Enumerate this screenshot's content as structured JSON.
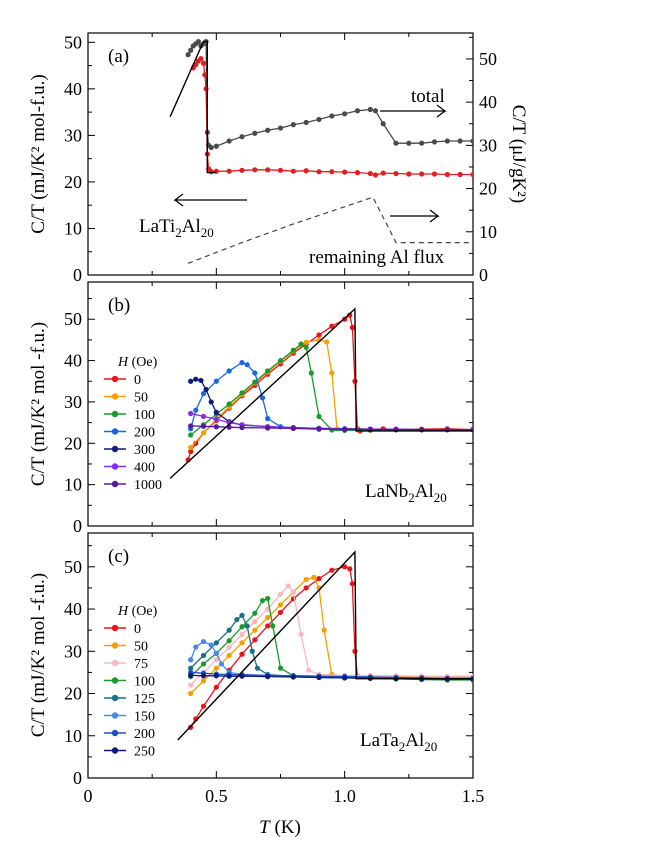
{
  "figure": {
    "xlabel_var": "T",
    "xlabel_unit": " (K)"
  },
  "chart_data": [
    {
      "id": "a",
      "type": "line",
      "panel_label": "(a)",
      "ylabel_left": "C/T (mJ/K² mol-f.u.)",
      "ylabel_right": "C/T (μJ/gK²)",
      "xlim": [
        0,
        1.5
      ],
      "ylim": [
        0,
        52
      ],
      "ylim_right": [
        0,
        56
      ],
      "yticks": [
        0,
        10,
        20,
        30,
        40,
        50
      ],
      "yticks_right": [
        0,
        10,
        20,
        30,
        40,
        50
      ],
      "annotations": {
        "sample": "LaTi",
        "sample_sub1": "2",
        "sample_mid": "Al",
        "sample_sub2": "20",
        "total": "total",
        "flux": "remaining Al flux"
      },
      "series": [
        {
          "color": "#4a4a4a",
          "axis": "right",
          "style": "marker-line",
          "x": [
            0.39,
            0.4,
            0.41,
            0.42,
            0.43,
            0.44,
            0.45,
            0.46,
            0.465,
            0.47,
            0.48,
            0.5,
            0.55,
            0.6,
            0.65,
            0.7,
            0.75,
            0.8,
            0.85,
            0.9,
            0.95,
            1.0,
            1.05,
            1.1,
            1.12,
            1.15,
            1.2,
            1.25,
            1.3,
            1.35,
            1.4,
            1.45,
            1.5
          ],
          "y": [
            51,
            52,
            53,
            53.5,
            54,
            53,
            53.5,
            54,
            33,
            30,
            29.5,
            29.8,
            31,
            32,
            32.8,
            33.5,
            34,
            34.8,
            35.3,
            36,
            36.8,
            37.3,
            38,
            38.3,
            38,
            35,
            30.5,
            30.5,
            30.5,
            30.8,
            31,
            31,
            31
          ]
        },
        {
          "color": "#e02020",
          "axis": "left",
          "style": "marker-line",
          "x": [
            0.41,
            0.42,
            0.43,
            0.44,
            0.45,
            0.455,
            0.46,
            0.465,
            0.47,
            0.48,
            0.5,
            0.55,
            0.6,
            0.65,
            0.7,
            0.75,
            0.8,
            0.85,
            0.9,
            0.95,
            1.0,
            1.05,
            1.1,
            1.12,
            1.15,
            1.2,
            1.25,
            1.3,
            1.35,
            1.4,
            1.45,
            1.5
          ],
          "y": [
            44.5,
            45.2,
            46,
            46.5,
            45.5,
            43,
            40,
            26,
            22.8,
            22.2,
            22.3,
            22.3,
            22.5,
            22.6,
            22.6,
            22.5,
            22.3,
            22.4,
            22.2,
            22.2,
            22.1,
            22,
            21.8,
            21.5,
            21.9,
            21.8,
            21.7,
            21.7,
            21.7,
            21.6,
            21.6,
            21.6
          ]
        },
        {
          "color": "#000000",
          "axis": "left",
          "style": "solid",
          "x": [
            0.32,
            0.45,
            0.465,
            0.465,
            0.47,
            0.5
          ],
          "y": [
            34,
            50.2,
            50.2,
            22,
            22,
            22
          ]
        },
        {
          "color": "#444444",
          "axis": "right",
          "style": "dashed",
          "x": [
            0.39,
            0.6,
            0.8,
            1.0,
            1.11,
            1.2,
            1.5
          ],
          "y": [
            2.7,
            7.5,
            11.8,
            15.8,
            18,
            7.5,
            7.5
          ]
        }
      ]
    },
    {
      "id": "b",
      "type": "line",
      "panel_label": "(b)",
      "ylabel": "C/T (mJ/K² mol -f.u.)",
      "xlim": [
        0,
        1.5
      ],
      "ylim": [
        0,
        59
      ],
      "yticks": [
        0,
        10,
        20,
        30,
        40,
        50
      ],
      "legend_title_var": "H",
      "legend_title_unit": " (Oe)",
      "legend_placement": "left",
      "annotations": {
        "sample": "LaNb",
        "sample_sub1": "2",
        "sample_mid": "Al",
        "sample_sub2": "20"
      },
      "series": [
        {
          "name": "0",
          "color": "#e8141c",
          "x": [
            0.39,
            0.4,
            0.42,
            0.45,
            0.5,
            0.55,
            0.6,
            0.65,
            0.7,
            0.75,
            0.8,
            0.85,
            0.9,
            0.95,
            1.0,
            1.02,
            1.03,
            1.04,
            1.05,
            1.06,
            1.1,
            1.15,
            1.2,
            1.3,
            1.4,
            1.5
          ],
          "y": [
            16,
            18,
            20,
            22.5,
            25.5,
            28.5,
            31.5,
            34,
            36.7,
            39.2,
            41.8,
            44,
            46.2,
            48.3,
            50,
            51,
            48,
            35,
            23.5,
            23,
            23.3,
            23.5,
            23.3,
            23.4,
            23.5,
            23.3
          ]
        },
        {
          "name": "50",
          "color": "#f5a000",
          "x": [
            0.4,
            0.45,
            0.5,
            0.55,
            0.6,
            0.65,
            0.7,
            0.75,
            0.8,
            0.85,
            0.9,
            0.93,
            0.95,
            0.97,
            1.0,
            1.05,
            1.1,
            1.2,
            1.3,
            1.4,
            1.5
          ],
          "y": [
            19,
            22.5,
            25.8,
            28.8,
            31.8,
            34.6,
            37.2,
            39.8,
            42.3,
            44.4,
            45,
            44.5,
            37,
            23.5,
            23.2,
            23.2,
            23.1,
            23.3,
            23.3,
            23.3,
            23.3
          ]
        },
        {
          "name": "100",
          "color": "#1a9a2c",
          "x": [
            0.4,
            0.45,
            0.5,
            0.55,
            0.6,
            0.65,
            0.7,
            0.75,
            0.8,
            0.83,
            0.85,
            0.87,
            0.9,
            0.95,
            1.0,
            1.1,
            1.2,
            1.3,
            1.4,
            1.5
          ],
          "y": [
            22,
            24.5,
            27,
            29.5,
            32.2,
            34.8,
            37.5,
            40,
            42.5,
            44,
            43.2,
            37,
            26.5,
            23.2,
            23.1,
            23.2,
            23.3,
            23.3,
            23.3,
            23.3
          ]
        },
        {
          "name": "200",
          "color": "#1a66e0",
          "x": [
            0.4,
            0.42,
            0.45,
            0.5,
            0.55,
            0.6,
            0.62,
            0.65,
            0.68,
            0.7,
            0.75,
            0.8,
            0.9,
            1.0,
            1.1,
            1.2,
            1.3,
            1.4,
            1.5
          ],
          "y": [
            23.5,
            28,
            32,
            35,
            37.5,
            39.5,
            39,
            37,
            31,
            26,
            24,
            23.6,
            23.4,
            23.3,
            23.3,
            23.3,
            23.3,
            23.3,
            23.3
          ]
        },
        {
          "name": "300",
          "color": "#101a78",
          "x": [
            0.4,
            0.42,
            0.44,
            0.46,
            0.48,
            0.5,
            0.55,
            0.6,
            0.7,
            0.8,
            0.9,
            1.0,
            1.1,
            1.2,
            1.3,
            1.4,
            1.5
          ],
          "y": [
            35,
            35.5,
            35.2,
            33,
            30,
            27.5,
            25.2,
            24.4,
            24,
            23.8,
            23.6,
            23.5,
            23.4,
            23.4,
            23.3,
            23.3,
            23.3
          ]
        },
        {
          "name": "400",
          "color": "#8a2be2",
          "x": [
            0.4,
            0.45,
            0.5,
            0.55,
            0.6,
            0.7,
            0.8,
            0.9,
            1.0,
            1.1,
            1.2,
            1.3,
            1.4,
            1.5
          ],
          "y": [
            27.2,
            26.5,
            25.8,
            25,
            24.5,
            24,
            23.8,
            23.6,
            23.5,
            23.4,
            23.4,
            23.3,
            23.3,
            23.3
          ]
        },
        {
          "name": "1000",
          "color": "#5a189a",
          "x": [
            0.4,
            0.45,
            0.5,
            0.55,
            0.6,
            0.7,
            0.8,
            0.9,
            1.0,
            1.1,
            1.2,
            1.3,
            1.4,
            1.5
          ],
          "y": [
            24.2,
            24.1,
            24,
            23.9,
            23.8,
            23.7,
            23.6,
            23.5,
            23.4,
            23.4,
            23.3,
            23.3,
            23.3,
            23.3
          ]
        },
        {
          "color": "#000000",
          "style": "solid",
          "x": [
            0.32,
            1.04,
            1.045,
            1.06,
            1.5
          ],
          "y": [
            11.5,
            52.5,
            23,
            23,
            23
          ]
        }
      ]
    },
    {
      "id": "c",
      "type": "line",
      "panel_label": "(c)",
      "ylabel": "C/T (mJ/K² mol -f.u.)",
      "xlabel": "T (K)",
      "xlim": [
        0,
        1.5
      ],
      "xticks": [
        0,
        0.5,
        1.0,
        1.5
      ],
      "xticklabels": [
        "0",
        "0.5",
        "1.0",
        "1.5"
      ],
      "ylim": [
        0,
        58
      ],
      "yticks": [
        0,
        10,
        20,
        30,
        40,
        50
      ],
      "legend_title_var": "H",
      "legend_title_unit": " (Oe)",
      "legend_placement": "left",
      "annotations": {
        "sample": "LaTa",
        "sample_sub1": "2",
        "sample_mid": "Al",
        "sample_sub2": "20"
      },
      "series": [
        {
          "name": "0",
          "color": "#e8141c",
          "x": [
            0.4,
            0.42,
            0.45,
            0.5,
            0.55,
            0.6,
            0.65,
            0.7,
            0.75,
            0.8,
            0.85,
            0.9,
            0.95,
            1.0,
            1.02,
            1.03,
            1.04,
            1.05,
            1.1,
            1.2,
            1.3,
            1.4,
            1.5
          ],
          "y": [
            12,
            14,
            17,
            21.5,
            25.5,
            29.3,
            32.7,
            36,
            39.2,
            42.4,
            45,
            47.2,
            49.2,
            50,
            49.5,
            46,
            30,
            24,
            23.8,
            23.7,
            23.6,
            23.6,
            23.6
          ]
        },
        {
          "name": "50",
          "color": "#f5a000",
          "x": [
            0.4,
            0.45,
            0.5,
            0.55,
            0.6,
            0.65,
            0.7,
            0.75,
            0.8,
            0.85,
            0.88,
            0.9,
            0.92,
            0.95,
            1.0,
            1.1,
            1.2,
            1.3,
            1.4,
            1.5
          ],
          "y": [
            20,
            23,
            26,
            29,
            32,
            35,
            38,
            41,
            44,
            47,
            47.5,
            45,
            35,
            24.5,
            24,
            24.2,
            24,
            24.1,
            24,
            24
          ]
        },
        {
          "name": "75",
          "color": "#f7b8c4",
          "x": [
            0.4,
            0.45,
            0.5,
            0.55,
            0.6,
            0.65,
            0.7,
            0.75,
            0.78,
            0.8,
            0.83,
            0.86,
            0.9,
            1.0,
            1.1,
            1.2,
            1.3,
            1.4,
            1.5
          ],
          "y": [
            22,
            25,
            28,
            31,
            34,
            37,
            40,
            43.5,
            45.5,
            44,
            34,
            25.5,
            24.5,
            24.3,
            24.2,
            24.2,
            24.1,
            24.1,
            24.1
          ]
        },
        {
          "name": "100",
          "color": "#1a9a2c",
          "x": [
            0.4,
            0.45,
            0.5,
            0.55,
            0.6,
            0.65,
            0.68,
            0.7,
            0.72,
            0.75,
            0.8,
            0.9,
            1.0,
            1.1,
            1.2,
            1.3,
            1.4,
            1.5
          ],
          "y": [
            24,
            27,
            29.5,
            32.5,
            35.8,
            39,
            42,
            42.5,
            36,
            26,
            24.2,
            24,
            23.8,
            23.6,
            23.5,
            23.3,
            23.2,
            23.2
          ]
        },
        {
          "name": "125",
          "color": "#1a6f8c",
          "x": [
            0.4,
            0.45,
            0.5,
            0.55,
            0.58,
            0.6,
            0.62,
            0.64,
            0.66,
            0.7,
            0.8,
            0.9,
            1.0,
            1.1,
            1.2,
            1.3,
            1.4,
            1.5
          ],
          "y": [
            26,
            29,
            32,
            35,
            37.5,
            38.5,
            36,
            30,
            26,
            24.5,
            24,
            23.8,
            23.7,
            23.6,
            23.5,
            23.4,
            23.4,
            23.4
          ]
        },
        {
          "name": "150",
          "color": "#4a86ee",
          "x": [
            0.4,
            0.42,
            0.45,
            0.48,
            0.5,
            0.52,
            0.55,
            0.6,
            0.7,
            0.8,
            0.9,
            1.0,
            1.1,
            1.2,
            1.3,
            1.4,
            1.5
          ],
          "y": [
            28,
            31,
            32.3,
            31.5,
            29.5,
            27,
            25,
            24.5,
            24.3,
            24.2,
            24.1,
            24,
            23.9,
            23.8,
            23.7,
            23.6,
            23.6
          ]
        },
        {
          "name": "200",
          "color": "#1a50c8",
          "x": [
            0.4,
            0.45,
            0.5,
            0.55,
            0.6,
            0.7,
            0.8,
            0.9,
            1.0,
            1.1,
            1.2,
            1.3,
            1.4,
            1.5
          ],
          "y": [
            25,
            24.8,
            24.6,
            24.5,
            24.4,
            24.3,
            24.2,
            24.1,
            24,
            23.9,
            23.8,
            23.7,
            23.6,
            23.6
          ]
        },
        {
          "name": "250",
          "color": "#0c1a78",
          "x": [
            0.4,
            0.45,
            0.5,
            0.55,
            0.6,
            0.7,
            0.8,
            0.9,
            1.0,
            1.1,
            1.2,
            1.3,
            1.4,
            1.5
          ],
          "y": [
            24.3,
            24.2,
            24.2,
            24.1,
            24.1,
            24,
            23.9,
            23.8,
            23.7,
            23.6,
            23.5,
            23.5,
            23.4,
            23.4
          ]
        },
        {
          "color": "#000000",
          "style": "solid",
          "x": [
            0.35,
            1.04,
            1.045,
            1.06,
            1.5
          ],
          "y": [
            9,
            53.5,
            23.5,
            23.5,
            23.5
          ]
        }
      ]
    }
  ]
}
